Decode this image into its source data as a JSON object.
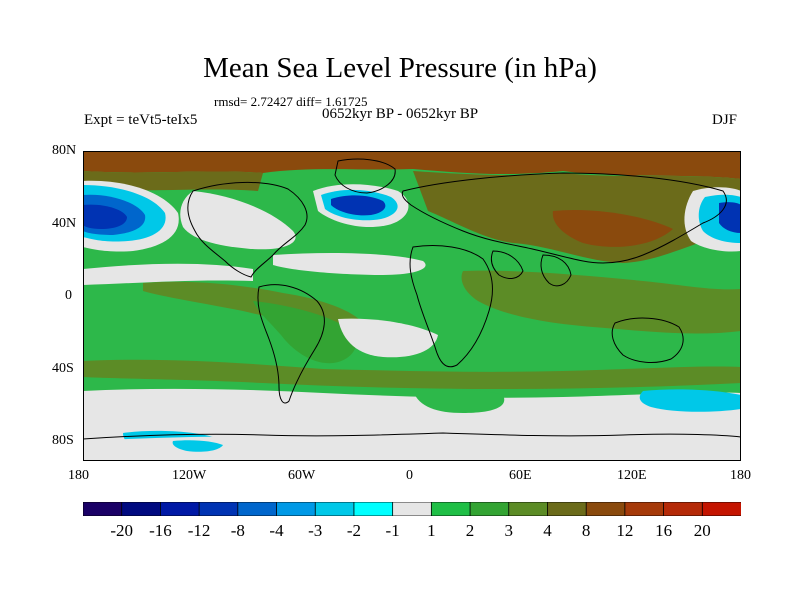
{
  "title": "Mean Sea Level Pressure (in hPa)",
  "stats": "rmsd= 2.72427 diff= 1.61725",
  "period": "0652kyr BP - 0652kyr BP",
  "experiment": "Expt = teVt5-teIx5",
  "season": "DJF",
  "lat_labels": [
    "80N",
    "40N",
    "0",
    "40S",
    "80S"
  ],
  "lon_labels": [
    "180",
    "120W",
    "60W",
    "0",
    "60E",
    "120E",
    "180"
  ],
  "colorbar": {
    "labels": [
      "-20",
      "-16",
      "-12",
      "-8",
      "-4",
      "-3",
      "-2",
      "-1",
      "1",
      "2",
      "3",
      "4",
      "8",
      "12",
      "16",
      "20"
    ],
    "colors": [
      "#1a0066",
      "#000a80",
      "#0019a6",
      "#0033b3",
      "#0066cc",
      "#0099e6",
      "#00c8e8",
      "#00ffff",
      "#e6e6e6",
      "#1fbf46",
      "#33a433",
      "#5c8c26",
      "#6b6b1a",
      "#8a4a0d",
      "#a63a0a",
      "#b52a08",
      "#c41400"
    ]
  },
  "colors": {
    "land_fill": "#5e8a29",
    "ocean_base": "#2db84a",
    "neutral": "#e6e6e6",
    "pos_strong": "#8a4a0d",
    "neg_strong": "#0033b3"
  }
}
